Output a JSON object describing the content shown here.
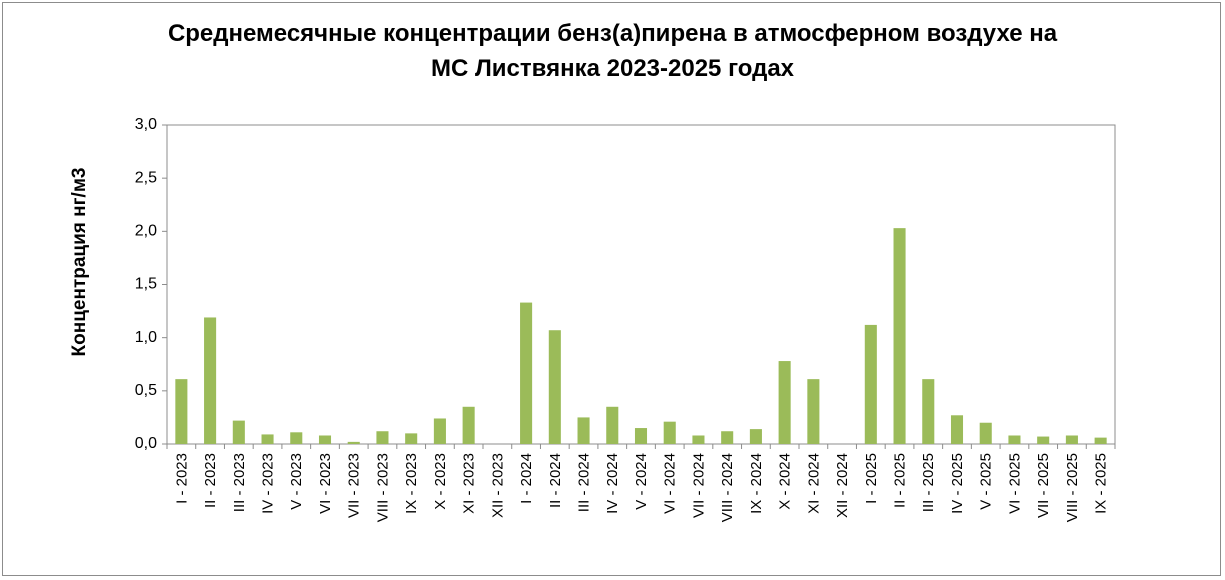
{
  "chart_data": {
    "type": "bar",
    "title_line1": "Среднемесячные концентрации бенз(а)пирена в атмосферном воздухе на",
    "title_line2": "МС Листвянка 2023-2025 годах",
    "xlabel": "",
    "ylabel": "Концентрация нг/м3",
    "ylim": [
      0,
      3.0
    ],
    "yticks": [
      "0,0",
      "0,5",
      "1,0",
      "1,5",
      "2,0",
      "2,5",
      "3,0"
    ],
    "grid": false,
    "legend": "none",
    "bar_color": "#9bbb59",
    "categories": [
      "I - 2023",
      "II - 2023",
      "III - 2023",
      "IV - 2023",
      "V - 2023",
      "VI - 2023",
      "VII - 2023",
      "VIII - 2023",
      "IX - 2023",
      "X - 2023",
      "XI - 2023",
      "XII - 2023",
      "I - 2024",
      "II - 2024",
      "III - 2024",
      "IV - 2024",
      "V - 2024",
      "VI - 2024",
      "VII - 2024",
      "VIII - 2024",
      "IX - 2024",
      "X - 2024",
      "XI - 2024",
      "XII - 2024",
      "I - 2025",
      "II - 2025",
      "III - 2025",
      "IV - 2025",
      "V - 2025",
      "VI - 2025",
      "VII - 2025",
      "VIII - 2025",
      "IX - 2025"
    ],
    "values": [
      0.61,
      1.19,
      0.22,
      0.09,
      0.11,
      0.08,
      0.02,
      0.12,
      0.1,
      0.24,
      0.35,
      0.0,
      1.33,
      1.07,
      0.25,
      0.35,
      0.15,
      0.21,
      0.08,
      0.12,
      0.14,
      0.78,
      0.61,
      0.0,
      1.12,
      2.03,
      0.61,
      0.27,
      0.2,
      0.08,
      0.07,
      0.08,
      0.06
    ]
  }
}
